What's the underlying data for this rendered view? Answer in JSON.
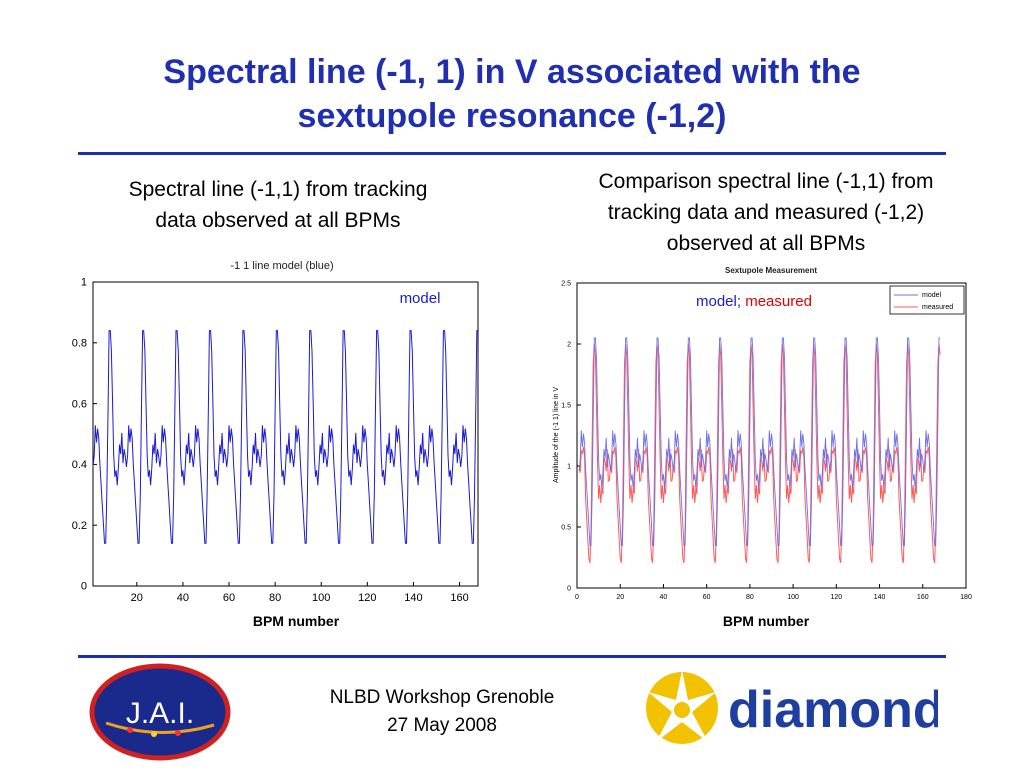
{
  "slide": {
    "title_line1": "Spectral line (-1, 1) in V associated with the",
    "title_line2": "sextupole resonance (-1,2)",
    "left_caption_line1": "Spectral line (-1,1) from tracking",
    "left_caption_line2": "data observed at all BPMs",
    "right_caption_line1": "Comparison spectral line (-1,1) from",
    "right_caption_line2": "tracking data and measured (-1,2)",
    "right_caption_line3": "observed at all BPMs",
    "left_xlabel": "BPM number",
    "right_xlabel": "BPM number",
    "left_overlay_label": "model",
    "right_overlay_label_model": "model;",
    "right_overlay_label_measured": "measured",
    "footer_line1": "NLBD Workshop Grenoble",
    "footer_line2": "27 May 2008",
    "logo_left_text": "J.A.I.",
    "logo_right_text": "diamond"
  },
  "colors": {
    "title": "#1f2fb0",
    "rule": "#1f2fb0",
    "model_line": "#1b1bd0",
    "model_line_light": "#6f6fe8",
    "measured_line": "#ff5a5a",
    "jai_bg": "#1a2a8c",
    "jai_ring": "#d02020",
    "diamond_text": "#1f3fa0",
    "diamond_star": "#f2c200"
  },
  "chart_data": [
    {
      "type": "line",
      "title": "-1 1 line model (blue)",
      "xlabel": "",
      "ylabel": "",
      "xlim": [
        1,
        168
      ],
      "ylim": [
        0,
        1
      ],
      "xticks": [
        20,
        40,
        60,
        80,
        100,
        120,
        140,
        160
      ],
      "yticks": [
        0,
        0.2,
        0.4,
        0.6,
        0.8,
        1
      ],
      "grid": false,
      "period": 14.5,
      "peak_x": [
        8,
        22.5,
        37,
        51.5,
        66,
        80.5,
        95,
        109.5,
        124,
        138.5,
        153,
        167.5
      ],
      "series": [
        {
          "name": "model",
          "x_range": [
            1,
            168
          ],
          "min": 0.08,
          "max": 0.84
        }
      ]
    },
    {
      "type": "line",
      "title": "Sextupole Measurement",
      "xlabel": "",
      "ylabel": "Amplitude of the (-1 1) line in V",
      "xlim": [
        0,
        180
      ],
      "ylim": [
        0,
        2.5
      ],
      "xticks": [
        0,
        20,
        40,
        60,
        80,
        100,
        120,
        140,
        160,
        180
      ],
      "yticks": [
        0,
        0.5,
        1,
        1.5,
        2,
        2.5
      ],
      "grid": false,
      "legend": "top-right",
      "period": 14.5,
      "peak_x": [
        8,
        22.5,
        37,
        51.5,
        66,
        80.5,
        95,
        109.5,
        124,
        138.5,
        153,
        167.5
      ],
      "series": [
        {
          "name": "model",
          "x_range": [
            1,
            168
          ],
          "min": 0.2,
          "max": 2.05
        },
        {
          "name": "measured",
          "x_range": [
            1,
            168
          ],
          "min": 0.05,
          "max": 2.0
        }
      ]
    }
  ]
}
